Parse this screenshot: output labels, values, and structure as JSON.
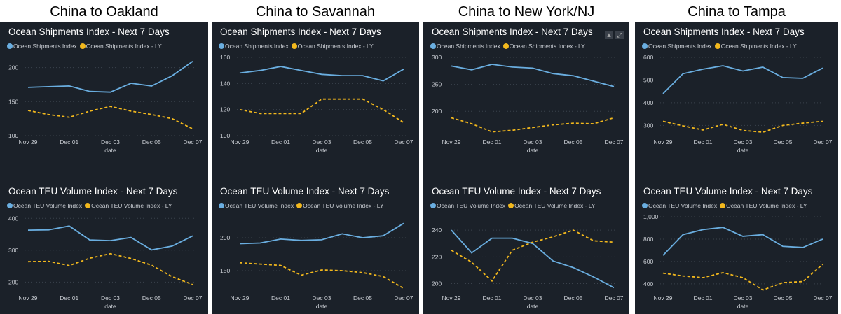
{
  "colors": {
    "current": "#6aaee0",
    "ly": "#f2b81d",
    "panel": "#1b2129",
    "grid": "#3b424c",
    "tick": "#c8ccd2"
  },
  "columns": [
    {
      "title": "China to Oakland"
    },
    {
      "title": "China to Savannah"
    },
    {
      "title": "China to New York/NJ",
      "icons": [
        "filter-icon",
        "expand-icon"
      ]
    },
    {
      "title": "China to Tampa"
    }
  ],
  "chart_data": [
    {
      "type": "line",
      "route": "China to Oakland",
      "title": "Ocean Shipments Index - Next 7 Days",
      "xlabel": "date",
      "categories": [
        "Nov 29",
        "Nov 30",
        "Dec 01",
        "Dec 02",
        "Dec 03",
        "Dec 04",
        "Dec 05",
        "Dec 06",
        "Dec 07"
      ],
      "xticks": [
        "Nov 29",
        "Dec 01",
        "Dec 03",
        "Dec 05",
        "Dec 07"
      ],
      "yticks": [
        100,
        150,
        200
      ],
      "ylim": [
        100,
        215
      ],
      "series": [
        {
          "name": "Ocean Shipments Index",
          "values": [
            171,
            172,
            173,
            165,
            164,
            177,
            173,
            188,
            209
          ]
        },
        {
          "name": "Ocean Shipments Index - LY",
          "values": [
            137,
            131,
            127,
            136,
            143,
            136,
            131,
            125,
            110
          ]
        }
      ]
    },
    {
      "type": "line",
      "route": "China to Oakland",
      "title": "Ocean TEU Volume Index - Next 7 Days",
      "xlabel": "date",
      "categories": [
        "Nov 29",
        "Nov 30",
        "Dec 01",
        "Dec 02",
        "Dec 03",
        "Dec 04",
        "Dec 05",
        "Dec 06",
        "Dec 07"
      ],
      "xticks": [
        "Nov 29",
        "Dec 01",
        "Dec 03",
        "Dec 05",
        "Dec 07"
      ],
      "yticks": [
        200,
        300,
        400
      ],
      "ylim": [
        170,
        405
      ],
      "series": [
        {
          "name": "Ocean TEU Volume Index",
          "values": [
            363,
            364,
            376,
            332,
            330,
            340,
            301,
            313,
            345
          ]
        },
        {
          "name": "Ocean TEU Volume Index - LY",
          "values": [
            264,
            265,
            252,
            275,
            289,
            274,
            253,
            217,
            192
          ]
        }
      ]
    },
    {
      "type": "line",
      "route": "China to Savannah",
      "title": "Ocean Shipments Index - Next 7 Days",
      "xlabel": "date",
      "categories": [
        "Nov 29",
        "Nov 30",
        "Dec 01",
        "Dec 02",
        "Dec 03",
        "Dec 04",
        "Dec 05",
        "Dec 06",
        "Dec 07"
      ],
      "xticks": [
        "Nov 29",
        "Dec 01",
        "Dec 03",
        "Dec 05",
        "Dec 07"
      ],
      "yticks": [
        100,
        120,
        140,
        160
      ],
      "ylim": [
        100,
        160
      ],
      "series": [
        {
          "name": "Ocean Shipments Index",
          "values": [
            148,
            150,
            153,
            150,
            147,
            146,
            146,
            142,
            151
          ]
        },
        {
          "name": "Ocean Shipments Index - LY",
          "values": [
            120,
            117,
            117,
            117,
            128,
            128,
            128,
            120,
            110
          ]
        }
      ]
    },
    {
      "type": "line",
      "route": "China to Savannah",
      "title": "Ocean TEU Volume Index - Next 7 Days",
      "xlabel": "date",
      "categories": [
        "Nov 29",
        "Nov 30",
        "Dec 01",
        "Dec 02",
        "Dec 03",
        "Dec 04",
        "Dec 05",
        "Dec 06",
        "Dec 07"
      ],
      "xticks": [
        "Nov 29",
        "Dec 01",
        "Dec 03",
        "Dec 05",
        "Dec 07"
      ],
      "yticks": [
        150,
        200
      ],
      "ylim": [
        118,
        232
      ],
      "series": [
        {
          "name": "Ocean TEU Volume Index",
          "values": [
            191,
            192,
            198,
            196,
            197,
            206,
            200,
            203,
            222
          ]
        },
        {
          "name": "Ocean TEU Volume Index - LY",
          "values": [
            162,
            160,
            158,
            143,
            151,
            150,
            147,
            141,
            123
          ]
        }
      ]
    },
    {
      "type": "line",
      "route": "China to New York/NJ",
      "title": "Ocean Shipments Index - Next 7 Days",
      "xlabel": "date",
      "categories": [
        "Nov 29",
        "Nov 30",
        "Dec 01",
        "Dec 02",
        "Dec 03",
        "Dec 04",
        "Dec 05",
        "Dec 06",
        "Dec 07"
      ],
      "xticks": [
        "Nov 29",
        "Dec 01",
        "Dec 03",
        "Dec 05",
        "Dec 07"
      ],
      "yticks": [
        200,
        250,
        300
      ],
      "ylim": [
        155,
        300
      ],
      "series": [
        {
          "name": "Ocean Shipments Index",
          "values": [
            284,
            277,
            287,
            282,
            280,
            270,
            266,
            256,
            246
          ]
        },
        {
          "name": "Ocean Shipments Index - LY",
          "values": [
            188,
            177,
            162,
            165,
            170,
            175,
            178,
            177,
            188
          ]
        }
      ]
    },
    {
      "type": "line",
      "route": "China to New York/NJ",
      "title": "Ocean TEU Volume Index - Next 7 Days",
      "xlabel": "date",
      "categories": [
        "Nov 29",
        "Nov 30",
        "Dec 01",
        "Dec 02",
        "Dec 03",
        "Dec 04",
        "Dec 05",
        "Dec 06",
        "Dec 07"
      ],
      "xticks": [
        "Nov 29",
        "Dec 01",
        "Dec 03",
        "Dec 05",
        "Dec 07"
      ],
      "yticks": [
        200,
        220,
        240
      ],
      "ylim": [
        194,
        250
      ],
      "series": [
        {
          "name": "Ocean TEU Volume Index",
          "values": [
            240,
            223,
            234,
            234,
            230,
            217,
            212,
            205,
            197
          ]
        },
        {
          "name": "Ocean TEU Volume Index - LY",
          "values": [
            225,
            216,
            202,
            225,
            231,
            235,
            240,
            232,
            231
          ]
        }
      ]
    },
    {
      "type": "line",
      "route": "China to Tampa",
      "title": "Ocean Shipments Index - Next 7 Days",
      "xlabel": "date",
      "categories": [
        "Nov 29",
        "Nov 30",
        "Dec 01",
        "Dec 02",
        "Dec 03",
        "Dec 04",
        "Dec 05",
        "Dec 06",
        "Dec 07"
      ],
      "xticks": [
        "Nov 29",
        "Dec 01",
        "Dec 03",
        "Dec 05",
        "Dec 07"
      ],
      "yticks": [
        300,
        400,
        500,
        600
      ],
      "ylim": [
        255,
        600
      ],
      "series": [
        {
          "name": "Ocean Shipments Index",
          "values": [
            440,
            528,
            548,
            563,
            540,
            557,
            511,
            508,
            553
          ]
        },
        {
          "name": "Ocean Shipments Index - LY",
          "values": [
            318,
            298,
            280,
            305,
            278,
            270,
            300,
            310,
            318
          ]
        }
      ]
    },
    {
      "type": "line",
      "route": "China to Tampa",
      "title": "Ocean TEU Volume Index - Next 7 Days",
      "xlabel": "date",
      "categories": [
        "Nov 29",
        "Nov 30",
        "Dec 01",
        "Dec 02",
        "Dec 03",
        "Dec 04",
        "Dec 05",
        "Dec 06",
        "Dec 07"
      ],
      "xticks": [
        "Nov 29",
        "Dec 01",
        "Dec 03",
        "Dec 05",
        "Dec 07"
      ],
      "yticks": [
        400,
        600,
        800,
        "1,000"
      ],
      "ylim": [
        330,
        1000
      ],
      "series": [
        {
          "name": "Ocean TEU Volume Index",
          "values": [
            655,
            840,
            885,
            905,
            825,
            840,
            735,
            725,
            800
          ]
        },
        {
          "name": "Ocean TEU Volume Index - LY",
          "values": [
            495,
            470,
            455,
            500,
            455,
            345,
            410,
            420,
            575
          ]
        }
      ]
    }
  ]
}
